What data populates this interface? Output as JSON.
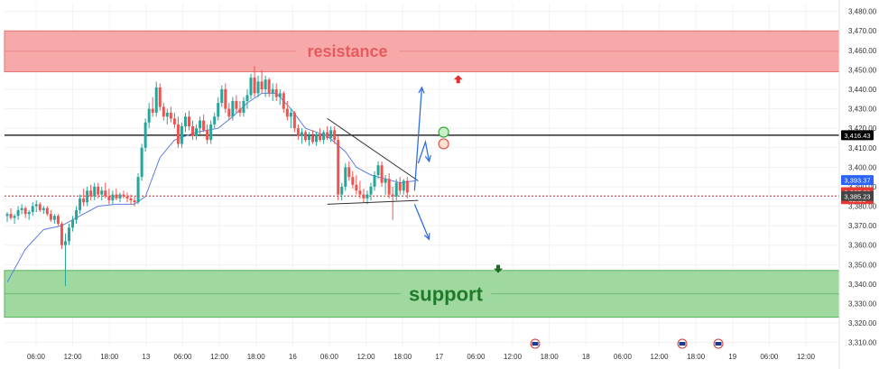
{
  "chart_data": {
    "type": "candlestick",
    "y_axis": {
      "ticks": [
        3310,
        3320,
        3330,
        3340,
        3350,
        3360,
        3370,
        3380,
        3390,
        3400,
        3410,
        3420,
        3430,
        3440,
        3450,
        3460,
        3470,
        3480
      ],
      "range": [
        3308,
        3484
      ]
    },
    "x_axis": {
      "tick_labels": [
        "06:00",
        "12:00",
        "18:00",
        "13",
        "06:00",
        "12:00",
        "18:00",
        "16",
        "06:00",
        "12:00",
        "18:00",
        "17",
        "06:00",
        "12:00",
        "18:00",
        "18",
        "06:00",
        "12:00",
        "18:00",
        "19",
        "06:00",
        "12:00"
      ]
    },
    "zones": [
      {
        "name": "resistance",
        "label": "resistance",
        "low": 3449,
        "high": 3470,
        "fill": "#f7a9aa",
        "border": "#e57373",
        "label_color": "#e55b5e"
      },
      {
        "name": "support",
        "label": "support",
        "low": 3323,
        "high": 3347,
        "fill": "#9fd9a0",
        "border": "#57b35b",
        "label_color": "#1f7a2a"
      }
    ],
    "horizontal_lines": [
      {
        "name": "key-level",
        "value": 3416.43,
        "color": "#000000",
        "style": "solid"
      },
      {
        "name": "current-price",
        "value": 3385.23,
        "color": "#c62828",
        "style": "dotted"
      }
    ],
    "price_labels": [
      {
        "text": "3,416.43",
        "value": 3416.43,
        "bg": "#000000",
        "fg": "#ffffff"
      },
      {
        "text": "3,393.37",
        "value": 3393.37,
        "bg": "#2962ff",
        "fg": "#ffffff"
      },
      {
        "text": "3,387.20",
        "value": 3387.2,
        "bg": "#e53935",
        "fg": "#ffffff"
      },
      {
        "text": "02:50",
        "value": 3383.6,
        "bg": "#e53935",
        "fg": "#ffffff"
      },
      {
        "text": "3,385.23",
        "value": 3385.23,
        "bg": "#444444",
        "fg": "#ffffff"
      }
    ],
    "colors": {
      "up": "#26a69a",
      "down": "#ef5350",
      "ma": "#5b7fe0",
      "arrow": "#2f6fe0"
    },
    "candles": [
      {
        "o": 3375,
        "h": 3377,
        "l": 3372,
        "c": 3376
      },
      {
        "o": 3376,
        "h": 3379,
        "l": 3373,
        "c": 3374
      },
      {
        "o": 3374,
        "h": 3376,
        "l": 3371,
        "c": 3375
      },
      {
        "o": 3375,
        "h": 3380,
        "l": 3373,
        "c": 3378
      },
      {
        "o": 3378,
        "h": 3381,
        "l": 3376,
        "c": 3379
      },
      {
        "o": 3379,
        "h": 3380,
        "l": 3374,
        "c": 3376
      },
      {
        "o": 3376,
        "h": 3378,
        "l": 3373,
        "c": 3377
      },
      {
        "o": 3377,
        "h": 3382,
        "l": 3375,
        "c": 3380
      },
      {
        "o": 3380,
        "h": 3383,
        "l": 3377,
        "c": 3381
      },
      {
        "o": 3381,
        "h": 3382,
        "l": 3377,
        "c": 3378
      },
      {
        "o": 3378,
        "h": 3380,
        "l": 3376,
        "c": 3379
      },
      {
        "o": 3379,
        "h": 3380,
        "l": 3375,
        "c": 3376
      },
      {
        "o": 3376,
        "h": 3378,
        "l": 3372,
        "c": 3373
      },
      {
        "o": 3373,
        "h": 3376,
        "l": 3371,
        "c": 3375
      },
      {
        "o": 3375,
        "h": 3376,
        "l": 3370,
        "c": 3371
      },
      {
        "o": 3371,
        "h": 3372,
        "l": 3358,
        "c": 3360
      },
      {
        "o": 3360,
        "h": 3366,
        "l": 3339,
        "c": 3362
      },
      {
        "o": 3362,
        "h": 3371,
        "l": 3360,
        "c": 3369
      },
      {
        "o": 3369,
        "h": 3375,
        "l": 3367,
        "c": 3373
      },
      {
        "o": 3373,
        "h": 3380,
        "l": 3371,
        "c": 3378
      },
      {
        "o": 3378,
        "h": 3386,
        "l": 3376,
        "c": 3384
      },
      {
        "o": 3384,
        "h": 3389,
        "l": 3380,
        "c": 3382
      },
      {
        "o": 3382,
        "h": 3390,
        "l": 3380,
        "c": 3388
      },
      {
        "o": 3388,
        "h": 3391,
        "l": 3383,
        "c": 3385
      },
      {
        "o": 3385,
        "h": 3392,
        "l": 3383,
        "c": 3390
      },
      {
        "o": 3390,
        "h": 3392,
        "l": 3384,
        "c": 3386
      },
      {
        "o": 3386,
        "h": 3390,
        "l": 3383,
        "c": 3388
      },
      {
        "o": 3388,
        "h": 3392,
        "l": 3384,
        "c": 3385
      },
      {
        "o": 3385,
        "h": 3389,
        "l": 3381,
        "c": 3383
      },
      {
        "o": 3383,
        "h": 3388,
        "l": 3381,
        "c": 3386
      },
      {
        "o": 3386,
        "h": 3389,
        "l": 3383,
        "c": 3384
      },
      {
        "o": 3384,
        "h": 3387,
        "l": 3382,
        "c": 3386
      },
      {
        "o": 3386,
        "h": 3388,
        "l": 3384,
        "c": 3385
      },
      {
        "o": 3385,
        "h": 3387,
        "l": 3382,
        "c": 3384
      },
      {
        "o": 3384,
        "h": 3386,
        "l": 3381,
        "c": 3383
      },
      {
        "o": 3383,
        "h": 3385,
        "l": 3380,
        "c": 3382
      },
      {
        "o": 3382,
        "h": 3397,
        "l": 3381,
        "c": 3395
      },
      {
        "o": 3395,
        "h": 3412,
        "l": 3393,
        "c": 3410
      },
      {
        "o": 3410,
        "h": 3425,
        "l": 3408,
        "c": 3423
      },
      {
        "o": 3423,
        "h": 3433,
        "l": 3420,
        "c": 3430
      },
      {
        "o": 3430,
        "h": 3436,
        "l": 3426,
        "c": 3428
      },
      {
        "o": 3428,
        "h": 3444,
        "l": 3426,
        "c": 3441
      },
      {
        "o": 3441,
        "h": 3443,
        "l": 3429,
        "c": 3431
      },
      {
        "o": 3431,
        "h": 3433,
        "l": 3424,
        "c": 3426
      },
      {
        "o": 3426,
        "h": 3430,
        "l": 3422,
        "c": 3428
      },
      {
        "o": 3428,
        "h": 3431,
        "l": 3423,
        "c": 3425
      },
      {
        "o": 3425,
        "h": 3428,
        "l": 3420,
        "c": 3422
      },
      {
        "o": 3422,
        "h": 3426,
        "l": 3410,
        "c": 3412
      },
      {
        "o": 3412,
        "h": 3423,
        "l": 3410,
        "c": 3421
      },
      {
        "o": 3421,
        "h": 3428,
        "l": 3418,
        "c": 3426
      },
      {
        "o": 3426,
        "h": 3429,
        "l": 3419,
        "c": 3421
      },
      {
        "o": 3421,
        "h": 3424,
        "l": 3414,
        "c": 3416
      },
      {
        "o": 3416,
        "h": 3422,
        "l": 3414,
        "c": 3420
      },
      {
        "o": 3420,
        "h": 3426,
        "l": 3417,
        "c": 3424
      },
      {
        "o": 3424,
        "h": 3427,
        "l": 3418,
        "c": 3419
      },
      {
        "o": 3419,
        "h": 3422,
        "l": 3412,
        "c": 3414
      },
      {
        "o": 3414,
        "h": 3424,
        "l": 3412,
        "c": 3422
      },
      {
        "o": 3422,
        "h": 3428,
        "l": 3420,
        "c": 3426
      },
      {
        "o": 3426,
        "h": 3436,
        "l": 3424,
        "c": 3433
      },
      {
        "o": 3433,
        "h": 3442,
        "l": 3431,
        "c": 3440
      },
      {
        "o": 3440,
        "h": 3443,
        "l": 3428,
        "c": 3430
      },
      {
        "o": 3430,
        "h": 3433,
        "l": 3424,
        "c": 3426
      },
      {
        "o": 3426,
        "h": 3436,
        "l": 3424,
        "c": 3434
      },
      {
        "o": 3434,
        "h": 3437,
        "l": 3428,
        "c": 3430
      },
      {
        "o": 3430,
        "h": 3434,
        "l": 3426,
        "c": 3428
      },
      {
        "o": 3428,
        "h": 3436,
        "l": 3426,
        "c": 3434
      },
      {
        "o": 3434,
        "h": 3440,
        "l": 3430,
        "c": 3437
      },
      {
        "o": 3437,
        "h": 3448,
        "l": 3435,
        "c": 3446
      },
      {
        "o": 3446,
        "h": 3452,
        "l": 3436,
        "c": 3438
      },
      {
        "o": 3438,
        "h": 3447,
        "l": 3436,
        "c": 3444
      },
      {
        "o": 3444,
        "h": 3450,
        "l": 3438,
        "c": 3440
      },
      {
        "o": 3440,
        "h": 3447,
        "l": 3436,
        "c": 3445
      },
      {
        "o": 3445,
        "h": 3446,
        "l": 3436,
        "c": 3438
      },
      {
        "o": 3438,
        "h": 3443,
        "l": 3434,
        "c": 3440
      },
      {
        "o": 3440,
        "h": 3443,
        "l": 3434,
        "c": 3436
      },
      {
        "o": 3436,
        "h": 3440,
        "l": 3432,
        "c": 3438
      },
      {
        "o": 3438,
        "h": 3439,
        "l": 3428,
        "c": 3430
      },
      {
        "o": 3430,
        "h": 3434,
        "l": 3424,
        "c": 3426
      },
      {
        "o": 3426,
        "h": 3430,
        "l": 3420,
        "c": 3428
      },
      {
        "o": 3428,
        "h": 3429,
        "l": 3418,
        "c": 3420
      },
      {
        "o": 3420,
        "h": 3422,
        "l": 3414,
        "c": 3416
      },
      {
        "o": 3416,
        "h": 3420,
        "l": 3412,
        "c": 3418
      },
      {
        "o": 3418,
        "h": 3419,
        "l": 3413,
        "c": 3414
      },
      {
        "o": 3414,
        "h": 3418,
        "l": 3411,
        "c": 3416
      },
      {
        "o": 3416,
        "h": 3419,
        "l": 3412,
        "c": 3413
      },
      {
        "o": 3413,
        "h": 3418,
        "l": 3411,
        "c": 3417
      },
      {
        "o": 3417,
        "h": 3420,
        "l": 3413,
        "c": 3414
      },
      {
        "o": 3414,
        "h": 3419,
        "l": 3412,
        "c": 3418
      },
      {
        "o": 3418,
        "h": 3421,
        "l": 3414,
        "c": 3415
      },
      {
        "o": 3415,
        "h": 3421,
        "l": 3413,
        "c": 3419
      },
      {
        "o": 3419,
        "h": 3421,
        "l": 3412,
        "c": 3414
      },
      {
        "o": 3414,
        "h": 3416,
        "l": 3383,
        "c": 3386
      },
      {
        "o": 3386,
        "h": 3392,
        "l": 3383,
        "c": 3390
      },
      {
        "o": 3390,
        "h": 3402,
        "l": 3388,
        "c": 3400
      },
      {
        "o": 3400,
        "h": 3403,
        "l": 3393,
        "c": 3395
      },
      {
        "o": 3395,
        "h": 3398,
        "l": 3389,
        "c": 3391
      },
      {
        "o": 3391,
        "h": 3396,
        "l": 3386,
        "c": 3388
      },
      {
        "o": 3388,
        "h": 3393,
        "l": 3384,
        "c": 3386
      },
      {
        "o": 3386,
        "h": 3389,
        "l": 3382,
        "c": 3384
      },
      {
        "o": 3384,
        "h": 3388,
        "l": 3381,
        "c": 3386
      },
      {
        "o": 3386,
        "h": 3392,
        "l": 3383,
        "c": 3390
      },
      {
        "o": 3390,
        "h": 3398,
        "l": 3388,
        "c": 3396
      },
      {
        "o": 3396,
        "h": 3403,
        "l": 3394,
        "c": 3401
      },
      {
        "o": 3401,
        "h": 3403,
        "l": 3390,
        "c": 3392
      },
      {
        "o": 3392,
        "h": 3396,
        "l": 3386,
        "c": 3394
      },
      {
        "o": 3394,
        "h": 3397,
        "l": 3384,
        "c": 3386
      },
      {
        "o": 3386,
        "h": 3390,
        "l": 3373,
        "c": 3385
      },
      {
        "o": 3385,
        "h": 3394,
        "l": 3383,
        "c": 3392
      },
      {
        "o": 3392,
        "h": 3395,
        "l": 3386,
        "c": 3388
      },
      {
        "o": 3388,
        "h": 3394,
        "l": 3386,
        "c": 3393
      },
      {
        "o": 3393,
        "h": 3395,
        "l": 3384,
        "c": 3387
      }
    ],
    "ma": [
      {
        "i": 0,
        "v": 3341
      },
      {
        "i": 5,
        "v": 3358
      },
      {
        "i": 10,
        "v": 3368
      },
      {
        "i": 15,
        "v": 3370
      },
      {
        "i": 20,
        "v": 3375
      },
      {
        "i": 25,
        "v": 3380
      },
      {
        "i": 30,
        "v": 3381
      },
      {
        "i": 35,
        "v": 3381
      },
      {
        "i": 38,
        "v": 3385
      },
      {
        "i": 42,
        "v": 3405
      },
      {
        "i": 46,
        "v": 3414
      },
      {
        "i": 52,
        "v": 3418
      },
      {
        "i": 58,
        "v": 3420
      },
      {
        "i": 62,
        "v": 3426
      },
      {
        "i": 66,
        "v": 3433
      },
      {
        "i": 70,
        "v": 3438
      },
      {
        "i": 74,
        "v": 3438
      },
      {
        "i": 78,
        "v": 3430
      },
      {
        "i": 82,
        "v": 3420
      },
      {
        "i": 88,
        "v": 3416
      },
      {
        "i": 93,
        "v": 3408
      },
      {
        "i": 96,
        "v": 3400
      },
      {
        "i": 100,
        "v": 3396
      },
      {
        "i": 104,
        "v": 3394
      },
      {
        "i": 108,
        "v": 3392
      },
      {
        "i": 112,
        "v": 3393
      }
    ],
    "trendlines": [
      {
        "name": "descending-trendline",
        "from": {
          "i": 88,
          "v": 3425
        },
        "to": {
          "i": 113,
          "v": 3393
        },
        "color": "#333333"
      },
      {
        "name": "base-trendline",
        "from": {
          "i": 88,
          "v": 3381
        },
        "to": {
          "i": 113,
          "v": 3383
        },
        "color": "#333333"
      }
    ],
    "projection_paths": [
      {
        "name": "bullish-projection",
        "points": [
          {
            "i": 112,
            "v": 3388
          },
          {
            "i": 114,
            "v": 3441
          }
        ],
        "color": "#2f6fe0",
        "arrowhead": true
      },
      {
        "name": "secondary-bullish-projection",
        "points": [
          {
            "i": 113,
            "v": 3402
          },
          {
            "i": 115,
            "v": 3413
          },
          {
            "i": 116,
            "v": 3403
          }
        ],
        "color": "#2f6fe0",
        "arrowhead": true
      },
      {
        "name": "bearish-projection",
        "points": [
          {
            "i": 112,
            "v": 3381
          },
          {
            "i": 116,
            "v": 3363
          }
        ],
        "color": "#2f6fe0",
        "arrowhead": true
      }
    ],
    "markers": [
      {
        "name": "green-circle",
        "i": 120,
        "v": 3418,
        "fill": "#c8f0c8",
        "stroke": "#3ba53b",
        "shape": "circle"
      },
      {
        "name": "red-circle",
        "i": 120,
        "v": 3412,
        "fill": "#fde2d0",
        "stroke": "#e05050",
        "shape": "circle"
      },
      {
        "name": "red-up-arrow",
        "i": 124,
        "v": 3445,
        "fill": "#e03030",
        "shape": "arrow-up"
      },
      {
        "name": "green-down-arrow",
        "i": 135,
        "v": 3348,
        "fill": "#1f6b25",
        "shape": "arrow-down"
      }
    ],
    "event_flags": [
      {
        "name": "us-event-flag-1",
        "slot": "17-18:00"
      },
      {
        "name": "us-event-flag-2",
        "slot": "18-18:00"
      },
      {
        "name": "us-event-flag-3",
        "slot": "19"
      }
    ]
  }
}
